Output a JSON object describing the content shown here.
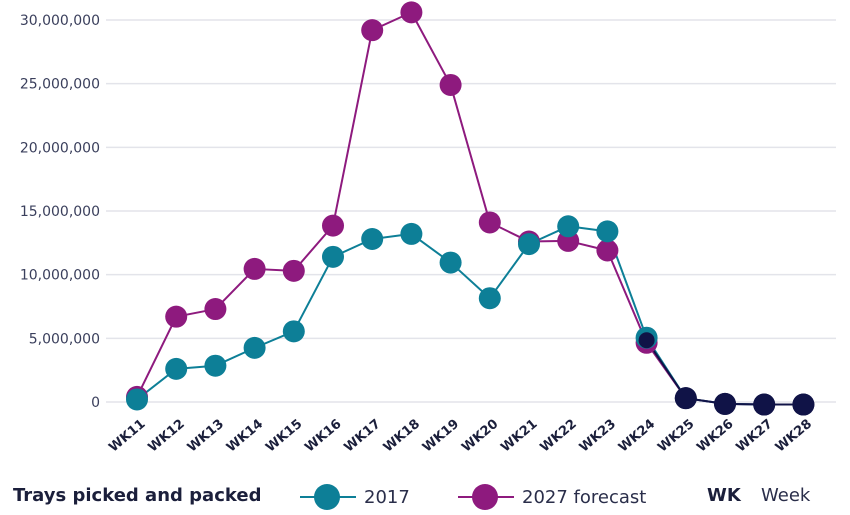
{
  "chart_data": {
    "type": "line",
    "categories": [
      "WK11",
      "WK12",
      "WK13",
      "WK14",
      "WK15",
      "WK16",
      "WK17",
      "WK18",
      "WK19",
      "WK20",
      "WK21",
      "WK22",
      "WK23",
      "WK24",
      "WK25",
      "WK26",
      "WK27",
      "WK28"
    ],
    "series": [
      {
        "name": "2017",
        "color": "#0d7f97",
        "values": [
          200000,
          2600000,
          2850000,
          4250000,
          5550000,
          11400000,
          12800000,
          13200000,
          10950000,
          8150000,
          12400000,
          13800000,
          13400000,
          5050000,
          300000,
          -150000,
          -200000,
          -200000
        ]
      },
      {
        "name": "2027 forecast",
        "color": "#8e1a7e",
        "values": [
          400000,
          6700000,
          7300000,
          10450000,
          10300000,
          13850000,
          29200000,
          30600000,
          24900000,
          14100000,
          12600000,
          12650000,
          11900000,
          4650000,
          300000,
          -150000,
          -200000,
          -200000
        ]
      }
    ],
    "overlap_color": "#101347",
    "ylim": [
      0,
      30000000
    ],
    "yticks": [
      {
        "value": 0,
        "label": "0"
      },
      {
        "value": 5000000,
        "label": "5,000,000"
      },
      {
        "value": 10000000,
        "label": "10,000,000"
      },
      {
        "value": 15000000,
        "label": "15,000,000"
      },
      {
        "value": 20000000,
        "label": "20,000,000"
      },
      {
        "value": 25000000,
        "label": "25,000,000"
      },
      {
        "value": 30000000,
        "label": "30,000,000"
      }
    ],
    "grid": true,
    "legend_position": "bottom"
  },
  "legend": {
    "title": "Trays picked and packed",
    "series_2017": "2017",
    "series_2027": "2027 forecast",
    "abbr": "WK",
    "abbr_def": "Week"
  }
}
